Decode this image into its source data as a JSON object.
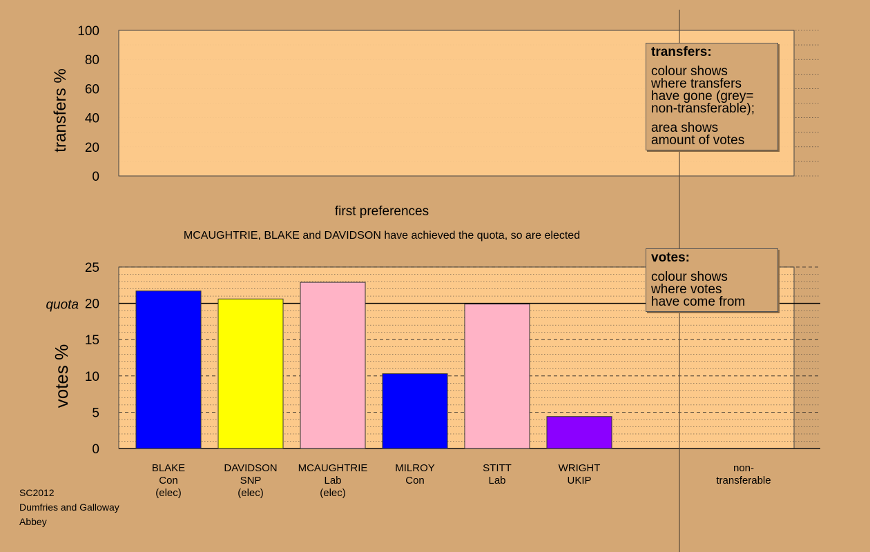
{
  "chart_data": [
    {
      "type": "bar",
      "name": "transfers",
      "ylabel": "transfers %",
      "ylim": [
        0,
        100
      ],
      "yticks": [
        0,
        20,
        40,
        60,
        80,
        100
      ],
      "xlabel": "first preferences",
      "categories": [],
      "values": [],
      "grid": true
    },
    {
      "type": "bar",
      "name": "votes",
      "title": "MCAUGHTRIE, BLAKE and DAVIDSON have achieved the quota, so are elected",
      "ylabel": "votes %",
      "ylim": [
        0,
        25
      ],
      "yticks": [
        0,
        5,
        10,
        15,
        20,
        25
      ],
      "quota": {
        "label": "quota",
        "value": 20
      },
      "categories": [
        {
          "name": "BLAKE",
          "party": "Con",
          "status": "(elec)"
        },
        {
          "name": "DAVIDSON",
          "party": "SNP",
          "status": "(elec)"
        },
        {
          "name": "MCAUGHTRIE",
          "party": "Lab",
          "status": "(elec)"
        },
        {
          "name": "MILROY",
          "party": "Con",
          "status": ""
        },
        {
          "name": "STITT",
          "party": "Lab",
          "status": ""
        },
        {
          "name": "WRIGHT",
          "party": "UKIP",
          "status": ""
        }
      ],
      "values": [
        21.7,
        20.6,
        22.9,
        10.3,
        19.9,
        4.4
      ],
      "colors": [
        "#0000ff",
        "#ffff00",
        "#ffb3c6",
        "#0000ff",
        "#ffb3c6",
        "#8b00ff"
      ],
      "nontransferable": {
        "label": "non-\ntransferable",
        "value": 0
      },
      "grid": true
    }
  ],
  "legends": {
    "transfers": {
      "title": "transfers:",
      "lines": [
        "colour shows",
        "where transfers",
        "have gone (grey=",
        "non-transferable);",
        "",
        "area shows",
        "amount of votes"
      ]
    },
    "votes": {
      "title": "votes:",
      "lines": [
        "colour shows",
        "where votes",
        "have come from"
      ]
    }
  },
  "footer": {
    "lines": [
      "SC2012",
      "Dumfries and Galloway",
      "Abbey"
    ]
  },
  "colors": {
    "background": "#d4a774",
    "plot_area": "#ffcc8c"
  }
}
